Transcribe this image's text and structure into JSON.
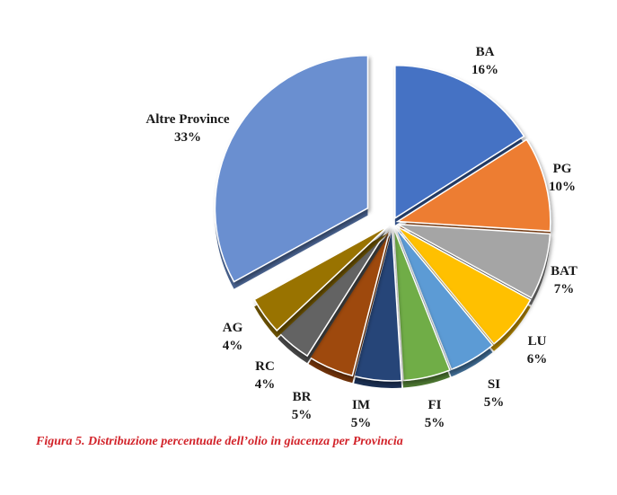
{
  "chart_data": {
    "type": "pie",
    "title": "",
    "exploded": true,
    "style": "3d",
    "slices": [
      {
        "label": "BA",
        "value": 16,
        "value_label": "16%",
        "color": "#4472c4"
      },
      {
        "label": "PG",
        "value": 10,
        "value_label": "10%",
        "color": "#ed7d31"
      },
      {
        "label": "BAT",
        "value": 7,
        "value_label": "7%",
        "color": "#a5a5a5"
      },
      {
        "label": "LU",
        "value": 6,
        "value_label": "6%",
        "color": "#ffc000"
      },
      {
        "label": "SI",
        "value": 5,
        "value_label": "5%",
        "color": "#5b9bd5"
      },
      {
        "label": "FI",
        "value": 5,
        "value_label": "5%",
        "color": "#70ad47"
      },
      {
        "label": "IM",
        "value": 5,
        "value_label": "5%",
        "color": "#264478"
      },
      {
        "label": "BR",
        "value": 5,
        "value_label": "5%",
        "color": "#9e480e"
      },
      {
        "label": "RC",
        "value": 4,
        "value_label": "4%",
        "color": "#636363"
      },
      {
        "label": "AG",
        "value": 4,
        "value_label": "4%",
        "color": "#997300"
      },
      {
        "label": "Altre Province",
        "value": 33,
        "value_label": "33%",
        "color": "#6a8fd0"
      }
    ]
  },
  "caption": "Figura 5. Distribuzione percentuale dell’olio in giacenza per Provincia"
}
